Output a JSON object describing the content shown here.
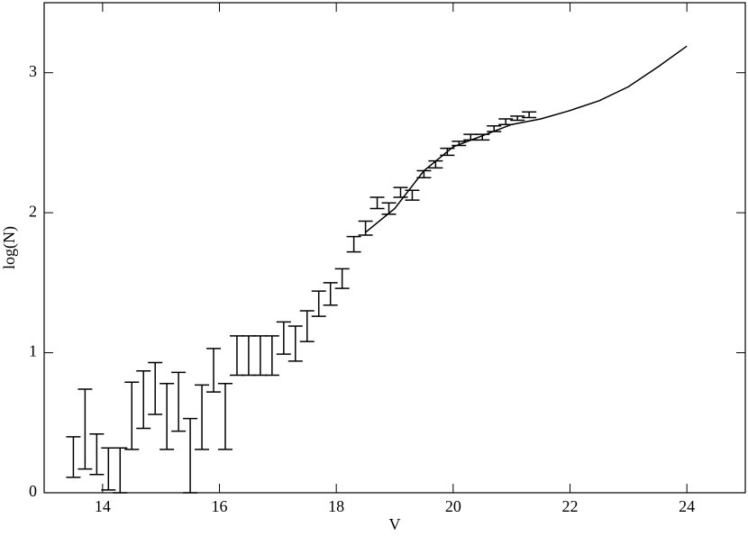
{
  "chart_data": {
    "type": "errorbar",
    "x_label": "V",
    "y_label": "log(N)",
    "xlim": [
      13,
      25
    ],
    "ylim": [
      0,
      3.5
    ],
    "xticks": [
      14,
      16,
      18,
      20,
      22,
      24
    ],
    "yticks": [
      0,
      1,
      2,
      3
    ],
    "series": [
      {
        "type": "errorbar",
        "color": "#000000",
        "x": [
          13.5,
          13.7,
          13.9,
          14.1,
          14.3,
          14.5,
          14.7,
          14.9,
          15.1,
          15.3,
          15.5,
          15.7,
          15.9,
          16.1,
          16.3,
          16.5,
          16.7,
          16.9,
          17.1,
          17.3,
          17.5,
          17.7,
          17.9,
          18.1,
          18.3,
          18.5,
          18.7,
          18.9,
          19.1,
          19.3,
          19.5,
          19.7,
          19.9,
          20.1,
          20.3,
          20.5,
          20.7,
          20.9,
          21.1,
          21.3
        ],
        "values": [
          0.255,
          0.455,
          0.275,
          0.17,
          0.16,
          0.55,
          0.665,
          0.745,
          0.545,
          0.65,
          0.265,
          0.54,
          0.875,
          0.545,
          0.98,
          0.98,
          0.98,
          0.98,
          1.105,
          1.065,
          1.19,
          1.35,
          1.42,
          1.53,
          1.775,
          1.89,
          2.07,
          2.03,
          2.145,
          2.125,
          2.275,
          2.345,
          2.435,
          2.495,
          2.54,
          2.54,
          2.6,
          2.65,
          2.675,
          2.7
        ],
        "errors": [
          0.145,
          0.285,
          0.145,
          0.15,
          0.16,
          0.24,
          0.205,
          0.185,
          0.235,
          0.21,
          0.265,
          0.23,
          0.155,
          0.235,
          0.14,
          0.14,
          0.14,
          0.14,
          0.115,
          0.125,
          0.11,
          0.09,
          0.08,
          0.07,
          0.055,
          0.05,
          0.04,
          0.04,
          0.035,
          0.035,
          0.025,
          0.025,
          0.025,
          0.015,
          0.02,
          0.02,
          0.02,
          0.02,
          0.015,
          0.02
        ]
      },
      {
        "type": "line",
        "color": "#000000",
        "x": [
          18.5,
          19.0,
          19.5,
          20.0,
          20.5,
          21.0,
          21.5,
          22.0,
          22.5,
          23.0,
          23.5,
          24.0
        ],
        "values": [
          1.86,
          2.03,
          2.3,
          2.47,
          2.55,
          2.63,
          2.67,
          2.73,
          2.8,
          2.9,
          3.04,
          3.19
        ]
      }
    ]
  }
}
